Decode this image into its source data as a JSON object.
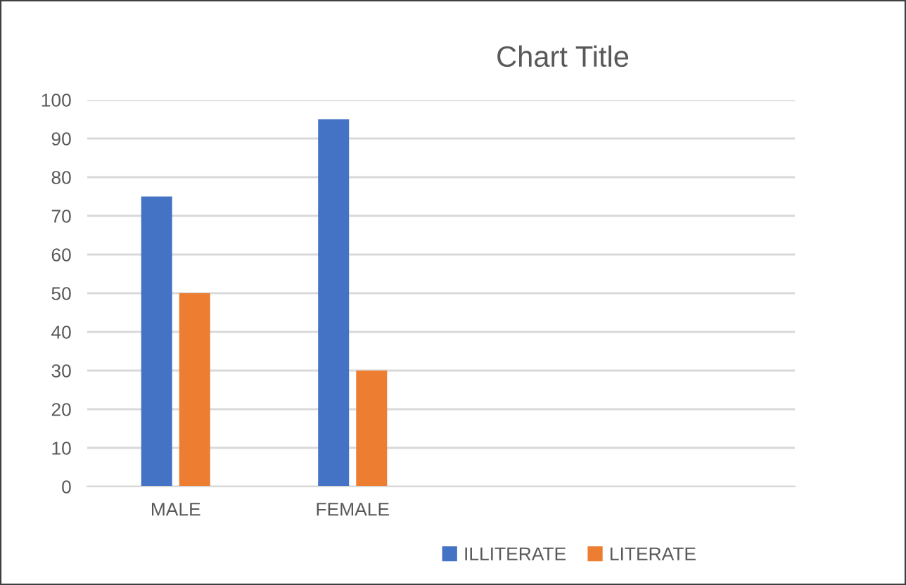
{
  "chart_data": {
    "type": "bar",
    "title": "Chart Title",
    "categories": [
      "MALE",
      "FEMALE",
      null,
      null
    ],
    "series": [
      {
        "name": "ILLITERATE",
        "color": "#4472c4",
        "values": [
          75,
          95,
          null,
          null
        ]
      },
      {
        "name": "LITERATE",
        "color": "#ed7d31",
        "values": [
          50,
          30,
          null,
          null
        ]
      }
    ],
    "ylim": [
      0,
      100
    ],
    "yticks": [
      0,
      10,
      20,
      30,
      40,
      50,
      60,
      70,
      80,
      90,
      100
    ],
    "grid": "y",
    "legend": "bottom"
  }
}
